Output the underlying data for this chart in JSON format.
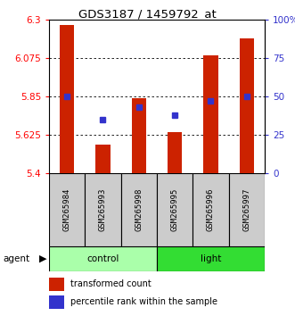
{
  "title": "GDS3187 / 1459792_at",
  "samples": [
    "GSM265984",
    "GSM265993",
    "GSM265998",
    "GSM265995",
    "GSM265996",
    "GSM265997"
  ],
  "red_values": [
    6.27,
    5.57,
    5.84,
    5.64,
    6.09,
    6.19
  ],
  "blue_values_pct": [
    50,
    35,
    43,
    38,
    47,
    50
  ],
  "y_min": 5.4,
  "y_max": 6.3,
  "y_ticks": [
    5.4,
    5.625,
    5.85,
    6.075,
    6.3
  ],
  "y_tick_labels": [
    "5.4",
    "5.625",
    "5.85",
    "6.075",
    "6.3"
  ],
  "y2_ticks": [
    0,
    25,
    50,
    75,
    100
  ],
  "y2_tick_labels": [
    "0",
    "25",
    "50",
    "75",
    "100%"
  ],
  "bar_color": "#cc2200",
  "dot_color": "#3333cc",
  "bar_width": 0.4,
  "ctrl_color": "#aaffaa",
  "light_color": "#33dd33",
  "sample_bg": "#cccccc"
}
